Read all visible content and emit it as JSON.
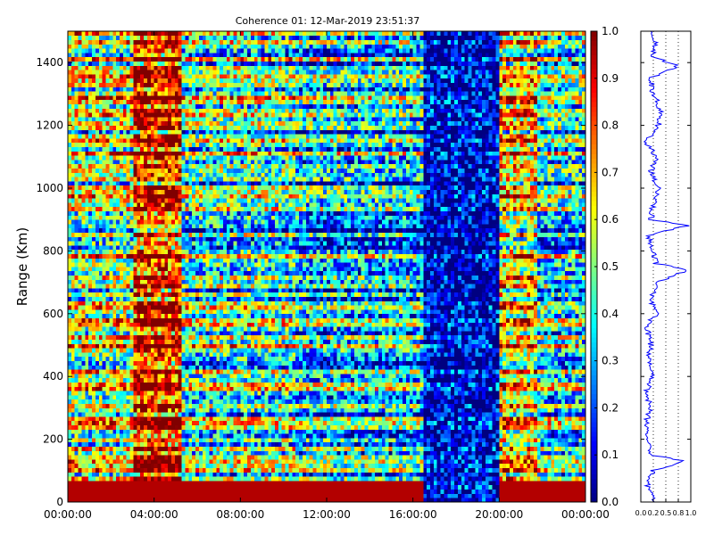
{
  "chart_data": [
    {
      "type": "heatmap",
      "title": "Coherence 01: 12-Mar-2019 23:51:37",
      "xlabel": "",
      "ylabel": "Range (Km)",
      "x_tick_labels": [
        "00:00:00",
        "04:00:00",
        "08:00:00",
        "12:00:00",
        "16:00:00",
        "20:00:00",
        "00:00:00"
      ],
      "x_range_hours": [
        0,
        24
      ],
      "y_ticks": [
        0,
        200,
        400,
        600,
        800,
        1000,
        1200,
        1400
      ],
      "ylim": [
        0,
        1500
      ],
      "colorbar": {
        "ticks": [
          "0.0",
          "0.1",
          "0.2",
          "0.3",
          "0.4",
          "0.5",
          "0.6",
          "0.7",
          "0.8",
          "0.9",
          "1.0"
        ],
        "range": [
          0,
          1
        ],
        "colormap": "jet"
      },
      "time_bands": [
        {
          "start_hour": 0.0,
          "end_hour": 3.0,
          "mean_coherence": 0.55
        },
        {
          "start_hour": 3.0,
          "end_hour": 5.3,
          "mean_coherence": 0.85
        },
        {
          "start_hour": 5.3,
          "end_hour": 10.5,
          "mean_coherence": 0.45
        },
        {
          "start_hour": 10.5,
          "end_hour": 16.5,
          "mean_coherence": 0.35
        },
        {
          "start_hour": 16.5,
          "end_hour": 20.0,
          "mean_coherence": 0.08
        },
        {
          "start_hour": 20.0,
          "end_hour": 21.7,
          "mean_coherence": 0.65
        },
        {
          "start_hour": 21.7,
          "end_hour": 24.0,
          "mean_coherence": 0.4
        }
      ],
      "grid": false
    },
    {
      "type": "line",
      "title": "",
      "xlabel": "",
      "ylabel": "",
      "x_tick_labels": [
        "0.0",
        "0.2",
        "0.5",
        "0.8",
        "1.0"
      ],
      "xlim": [
        0,
        1
      ],
      "ylim": [
        0,
        1500
      ],
      "grid": "vertical dotted",
      "series_color": "#0000ff",
      "profile": [
        [
          0,
          0.3
        ],
        [
          50,
          0.12
        ],
        [
          100,
          0.25
        ],
        [
          130,
          0.9
        ],
        [
          150,
          0.2
        ],
        [
          200,
          0.15
        ],
        [
          250,
          0.1
        ],
        [
          300,
          0.2
        ],
        [
          350,
          0.1
        ],
        [
          400,
          0.25
        ],
        [
          450,
          0.15
        ],
        [
          500,
          0.2
        ],
        [
          560,
          0.12
        ],
        [
          600,
          0.3
        ],
        [
          650,
          0.2
        ],
        [
          700,
          0.35
        ],
        [
          740,
          0.95
        ],
        [
          760,
          0.3
        ],
        [
          800,
          0.25
        ],
        [
          850,
          0.15
        ],
        [
          880,
          0.92
        ],
        [
          900,
          0.2
        ],
        [
          950,
          0.25
        ],
        [
          1000,
          0.35
        ],
        [
          1050,
          0.2
        ],
        [
          1100,
          0.3
        ],
        [
          1150,
          0.1
        ],
        [
          1200,
          0.35
        ],
        [
          1250,
          0.4
        ],
        [
          1300,
          0.25
        ],
        [
          1350,
          0.2
        ],
        [
          1390,
          0.75
        ],
        [
          1420,
          0.2
        ],
        [
          1450,
          0.3
        ],
        [
          1500,
          0.25
        ]
      ]
    }
  ]
}
